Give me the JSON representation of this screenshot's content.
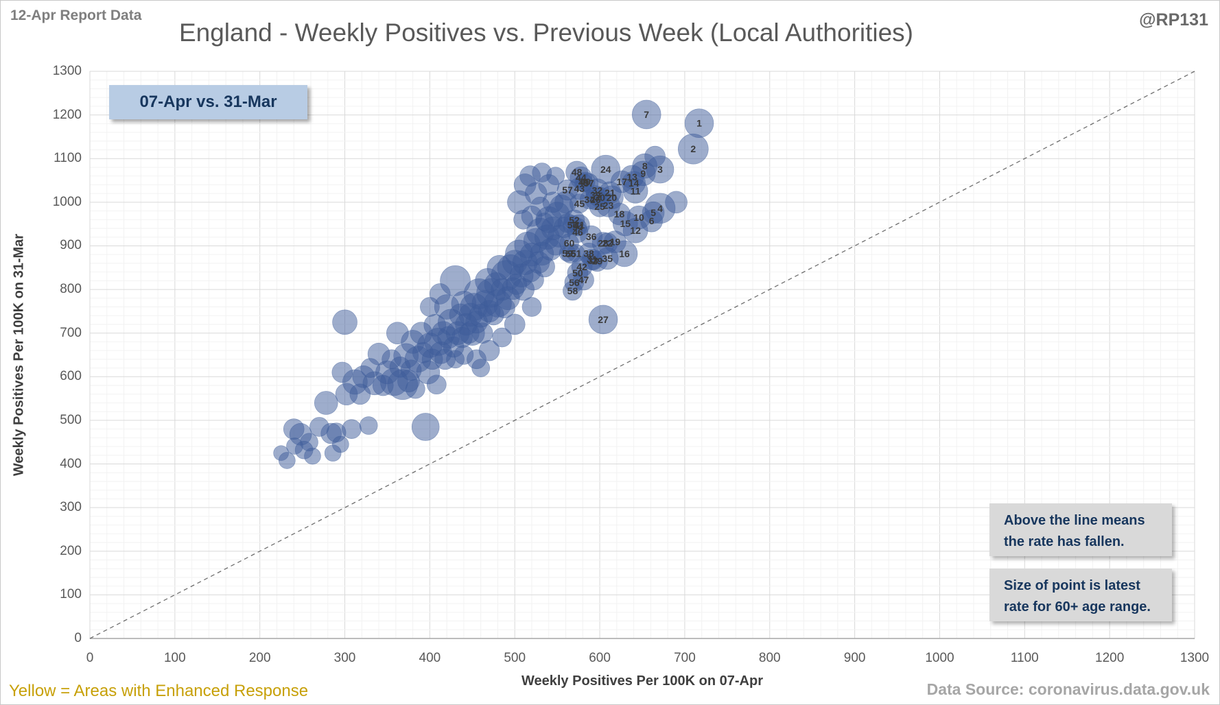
{
  "header": {
    "report_label": "12-Apr Report Data",
    "title": "England - Weekly Positives vs. Previous Week (Local Authorities)",
    "handle": "@RP131"
  },
  "legend_box": {
    "label": "07-Apr vs. 31-Mar"
  },
  "notes": [
    {
      "line1": "Above the line means",
      "line2": "the rate has fallen."
    },
    {
      "line1": "Size of point is latest",
      "line2": "rate for 60+ age range."
    }
  ],
  "footer": {
    "yellow_note": "Yellow = Areas with Enhanced Response",
    "data_source": "Data Source: coronavirus.data.gov.uk"
  },
  "chart_data": {
    "type": "scatter",
    "subtype": "bubble",
    "title": "England - Weekly Positives vs. Previous Week (Local Authorities)",
    "xlabel": "Weekly Positives Per 100K on 07-Apr",
    "ylabel": "Weekly Positives Per 100K on 31-Mar",
    "xlim": [
      0,
      1300
    ],
    "ylim": [
      0,
      1300
    ],
    "x_ticks": [
      0,
      100,
      200,
      300,
      400,
      500,
      600,
      700,
      800,
      900,
      1000,
      1100,
      1200,
      1300
    ],
    "y_ticks": [
      0,
      100,
      200,
      300,
      400,
      500,
      600,
      700,
      800,
      900,
      1000,
      1100,
      1200,
      1300
    ],
    "grid": {
      "minor_step": 20,
      "major_step": 100,
      "minor_color": "#f2f2f2",
      "major_color": "#d9d9d9"
    },
    "diagonal_line": {
      "from": [
        0,
        0
      ],
      "to": [
        1300,
        1300
      ],
      "style": "dashed",
      "color": "#6f6f6f"
    },
    "colors": {
      "bubble_fill": "rgba(62,92,153,0.5)",
      "bubble_stroke": "rgba(62,92,153,0.55)",
      "label_color": "#3a3a3a",
      "accent_navy": "#17365d",
      "legend_bg": "#b8cce4",
      "note_bg": "#d9d9d9",
      "yellow": "#c7a008"
    },
    "size_meaning": "latest rate for 60+ age range",
    "labeled_points": [
      {
        "n": 1,
        "x": 717,
        "y": 1181,
        "r": 21
      },
      {
        "n": 2,
        "x": 710,
        "y": 1122,
        "r": 22
      },
      {
        "n": 3,
        "x": 671,
        "y": 1075,
        "r": 20
      },
      {
        "n": 4,
        "x": 671,
        "y": 986,
        "r": 22
      },
      {
        "n": 5,
        "x": 663,
        "y": 976,
        "r": 16
      },
      {
        "n": 6,
        "x": 661,
        "y": 957,
        "r": 16
      },
      {
        "n": 7,
        "x": 655,
        "y": 1201,
        "r": 21
      },
      {
        "n": 8,
        "x": 653,
        "y": 1083,
        "r": 18
      },
      {
        "n": 9,
        "x": 651,
        "y": 1066,
        "r": 18
      },
      {
        "n": 10,
        "x": 646,
        "y": 965,
        "r": 17
      },
      {
        "n": 11,
        "x": 642,
        "y": 1026,
        "r": 18
      },
      {
        "n": 12,
        "x": 642,
        "y": 935,
        "r": 18
      },
      {
        "n": 13,
        "x": 638,
        "y": 1058,
        "r": 17
      },
      {
        "n": 14,
        "x": 640,
        "y": 1044,
        "r": 17
      },
      {
        "n": 15,
        "x": 630,
        "y": 951,
        "r": 18
      },
      {
        "n": 16,
        "x": 629,
        "y": 882,
        "r": 19
      },
      {
        "n": 17,
        "x": 626,
        "y": 1047,
        "r": 16
      },
      {
        "n": 18,
        "x": 623,
        "y": 973,
        "r": 16
      },
      {
        "n": 19,
        "x": 618,
        "y": 909,
        "r": 16
      },
      {
        "n": 20,
        "x": 614,
        "y": 1011,
        "r": 17
      },
      {
        "n": 21,
        "x": 612,
        "y": 1022,
        "r": 16
      },
      {
        "n": 22,
        "x": 609,
        "y": 906,
        "r": 15
      },
      {
        "n": 23,
        "x": 610,
        "y": 993,
        "r": 17
      },
      {
        "n": 24,
        "x": 607,
        "y": 1075,
        "r": 21
      },
      {
        "n": 25,
        "x": 600,
        "y": 990,
        "r": 15
      },
      {
        "n": 26,
        "x": 595,
        "y": 1006,
        "r": 15
      },
      {
        "n": 27,
        "x": 604,
        "y": 731,
        "r": 21
      },
      {
        "n": 28,
        "x": 604,
        "y": 906,
        "r": 16
      },
      {
        "n": 29,
        "x": 597,
        "y": 865,
        "r": 15
      },
      {
        "n": 30,
        "x": 600,
        "y": 1011,
        "r": 15
      },
      {
        "n": 31,
        "x": 591,
        "y": 869,
        "r": 15
      },
      {
        "n": 32,
        "x": 597,
        "y": 1027,
        "r": 17
      },
      {
        "n": 33,
        "x": 592,
        "y": 866,
        "r": 14
      },
      {
        "n": 34,
        "x": 588,
        "y": 1006,
        "r": 14
      },
      {
        "n": 35,
        "x": 609,
        "y": 871,
        "r": 16
      },
      {
        "n": 36,
        "x": 590,
        "y": 921,
        "r": 16
      },
      {
        "n": 37,
        "x": 587,
        "y": 1044,
        "r": 14
      },
      {
        "n": 38,
        "x": 587,
        "y": 883,
        "r": 15
      },
      {
        "n": 39,
        "x": 595,
        "y": 1016,
        "r": 14
      },
      {
        "n": 40,
        "x": 583,
        "y": 1047,
        "r": 14
      },
      {
        "n": 41,
        "x": 576,
        "y": 948,
        "r": 15
      },
      {
        "n": 42,
        "x": 579,
        "y": 852,
        "r": 15
      },
      {
        "n": 43,
        "x": 576,
        "y": 1031,
        "r": 16
      },
      {
        "n": 44,
        "x": 578,
        "y": 1056,
        "r": 16
      },
      {
        "n": 45,
        "x": 576,
        "y": 997,
        "r": 14
      },
      {
        "n": 46,
        "x": 574,
        "y": 931,
        "r": 15
      },
      {
        "n": 47,
        "x": 581,
        "y": 822,
        "r": 15
      },
      {
        "n": 48,
        "x": 573,
        "y": 1069,
        "r": 16
      },
      {
        "n": 49,
        "x": 581,
        "y": 1045,
        "r": 13
      },
      {
        "n": 50,
        "x": 574,
        "y": 838,
        "r": 15
      },
      {
        "n": 51,
        "x": 572,
        "y": 883,
        "r": 13
      },
      {
        "n": 52,
        "x": 570,
        "y": 959,
        "r": 15
      },
      {
        "n": 53,
        "x": 568,
        "y": 948,
        "r": 14
      },
      {
        "n": 54,
        "x": 574,
        "y": 943,
        "r": 13
      },
      {
        "n": 55,
        "x": 566,
        "y": 882,
        "r": 14
      },
      {
        "n": 56,
        "x": 570,
        "y": 816,
        "r": 14
      },
      {
        "n": 57,
        "x": 562,
        "y": 1028,
        "r": 15
      },
      {
        "n": 58,
        "x": 568,
        "y": 797,
        "r": 14
      },
      {
        "n": 59,
        "x": 562,
        "y": 883,
        "r": 12
      },
      {
        "n": 60,
        "x": 564,
        "y": 906,
        "r": 14
      }
    ],
    "points": [
      [
        225,
        425,
        11
      ],
      [
        232,
        408,
        12
      ],
      [
        240,
        480,
        15
      ],
      [
        248,
        468,
        16
      ],
      [
        258,
        450,
        13
      ],
      [
        262,
        418,
        12
      ],
      [
        270,
        485,
        14
      ],
      [
        278,
        540,
        17
      ],
      [
        284,
        470,
        15
      ],
      [
        290,
        472,
        14
      ],
      [
        295,
        445,
        12
      ],
      [
        300,
        725,
        18
      ],
      [
        302,
        560,
        16
      ],
      [
        308,
        480,
        14
      ],
      [
        312,
        588,
        18
      ],
      [
        318,
        560,
        15
      ],
      [
        322,
        600,
        16
      ],
      [
        328,
        488,
        13
      ],
      [
        330,
        620,
        14
      ],
      [
        335,
        585,
        17
      ],
      [
        297,
        610,
        15
      ],
      [
        286,
        425,
        12
      ],
      [
        252,
        432,
        13
      ],
      [
        241,
        441,
        12
      ],
      [
        340,
        652,
        16
      ],
      [
        345,
        580,
        15
      ],
      [
        350,
        610,
        17
      ],
      [
        355,
        640,
        14
      ],
      [
        358,
        588,
        20
      ],
      [
        362,
        700,
        16
      ],
      [
        365,
        622,
        15
      ],
      [
        368,
        582,
        22
      ],
      [
        372,
        648,
        18
      ],
      [
        375,
        590,
        16
      ],
      [
        378,
        615,
        15
      ],
      [
        380,
        680,
        17
      ],
      [
        383,
        572,
        14
      ],
      [
        386,
        640,
        19
      ],
      [
        390,
        700,
        16
      ],
      [
        392,
        655,
        15
      ],
      [
        395,
        485,
        20
      ],
      [
        398,
        610,
        17
      ],
      [
        400,
        672,
        18
      ],
      [
        403,
        640,
        15
      ],
      [
        406,
        718,
        16
      ],
      [
        408,
        582,
        14
      ],
      [
        410,
        680,
        20
      ],
      [
        413,
        655,
        16
      ],
      [
        416,
        700,
        17
      ],
      [
        418,
        640,
        15
      ],
      [
        420,
        760,
        18
      ],
      [
        422,
        690,
        16
      ],
      [
        425,
        725,
        19
      ],
      [
        428,
        668,
        15
      ],
      [
        430,
        820,
        22
      ],
      [
        433,
        700,
        17
      ],
      [
        436,
        742,
        16
      ],
      [
        438,
        690,
        15
      ],
      [
        440,
        768,
        18
      ],
      [
        443,
        720,
        16
      ],
      [
        446,
        700,
        15
      ],
      [
        448,
        742,
        17
      ],
      [
        400,
        760,
        14
      ],
      [
        412,
        790,
        15
      ],
      [
        430,
        640,
        13
      ],
      [
        440,
        650,
        14
      ],
      [
        450,
        700,
        18
      ],
      [
        452,
        760,
        20
      ],
      [
        455,
        725,
        16
      ],
      [
        458,
        790,
        22
      ],
      [
        460,
        740,
        17
      ],
      [
        462,
        700,
        15
      ],
      [
        465,
        768,
        19
      ],
      [
        468,
        820,
        18
      ],
      [
        470,
        750,
        16
      ],
      [
        472,
        792,
        21
      ],
      [
        475,
        742,
        15
      ],
      [
        478,
        812,
        17
      ],
      [
        480,
        768,
        20
      ],
      [
        482,
        850,
        18
      ],
      [
        485,
        800,
        16
      ],
      [
        488,
        758,
        15
      ],
      [
        490,
        832,
        22
      ],
      [
        492,
        780,
        17
      ],
      [
        495,
        850,
        19
      ],
      [
        498,
        802,
        16
      ],
      [
        500,
        862,
        18
      ],
      [
        502,
        812,
        15
      ],
      [
        505,
        882,
        20
      ],
      [
        508,
        832,
        17
      ],
      [
        510,
        800,
        16
      ],
      [
        512,
        862,
        18
      ],
      [
        515,
        902,
        19
      ],
      [
        518,
        842,
        16
      ],
      [
        520,
        880,
        17
      ],
      [
        522,
        822,
        15
      ],
      [
        525,
        912,
        18
      ],
      [
        528,
        862,
        16
      ],
      [
        530,
        932,
        20
      ],
      [
        532,
        882,
        17
      ],
      [
        535,
        852,
        15
      ],
      [
        538,
        920,
        18
      ],
      [
        540,
        960,
        19
      ],
      [
        542,
        892,
        16
      ],
      [
        545,
        940,
        17
      ],
      [
        548,
        902,
        15
      ],
      [
        550,
        972,
        18
      ],
      [
        552,
        922,
        16
      ],
      [
        555,
        990,
        17
      ],
      [
        558,
        942,
        15
      ],
      [
        560,
        1000,
        16
      ],
      [
        562,
        952,
        14
      ],
      [
        455,
        640,
        14
      ],
      [
        470,
        660,
        15
      ],
      [
        485,
        690,
        14
      ],
      [
        500,
        720,
        15
      ],
      [
        520,
        760,
        14
      ],
      [
        460,
        620,
        13
      ],
      [
        505,
        1000,
        17
      ],
      [
        512,
        1040,
        16
      ],
      [
        518,
        1060,
        15
      ],
      [
        525,
        1020,
        16
      ],
      [
        532,
        1068,
        14
      ],
      [
        540,
        1040,
        15
      ],
      [
        510,
        960,
        14
      ],
      [
        520,
        968,
        15
      ],
      [
        530,
        990,
        14
      ],
      [
        545,
        1000,
        15
      ],
      [
        548,
        1060,
        13
      ],
      [
        535,
        955,
        13
      ],
      [
        665,
        1105,
        15
      ],
      [
        690,
        1000,
        16
      ]
    ]
  }
}
